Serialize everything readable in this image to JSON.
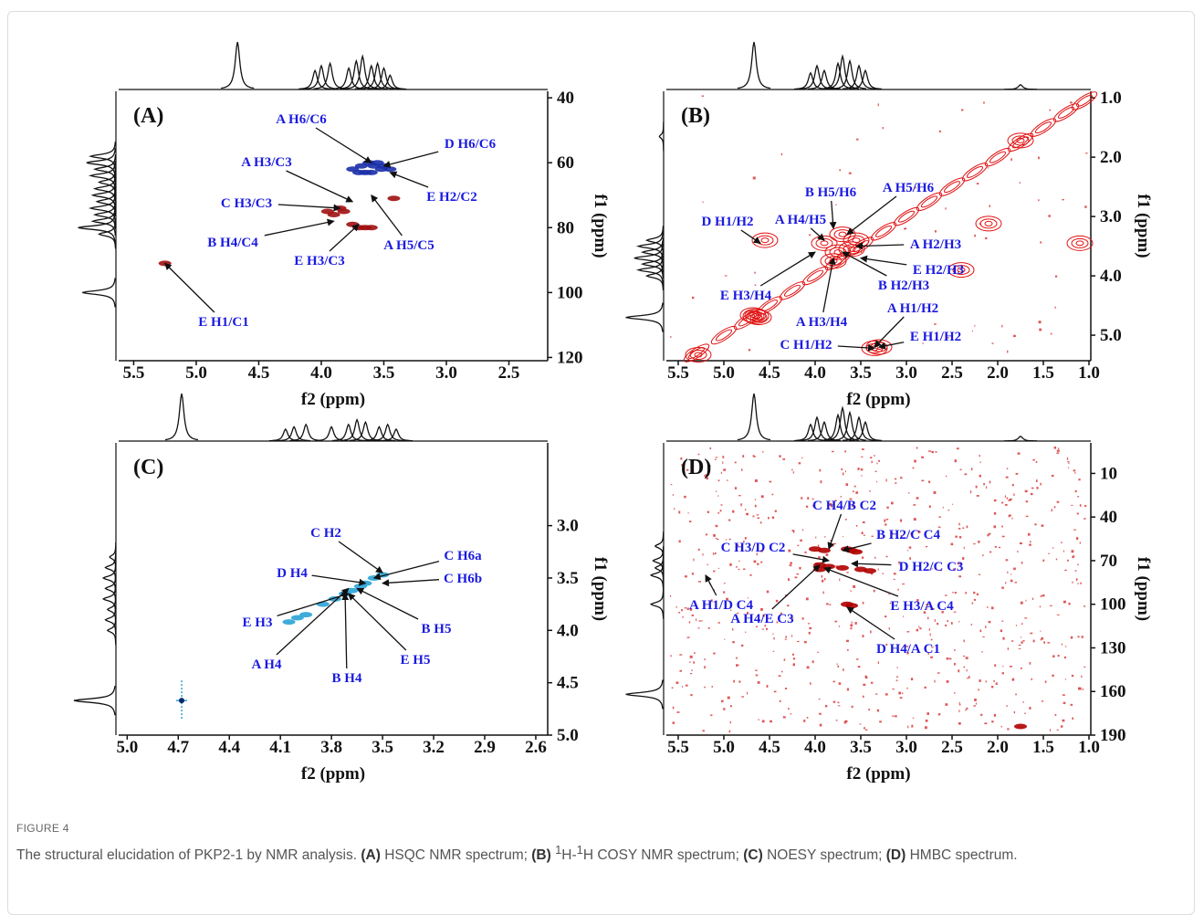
{
  "figure_label": "FIGURE 4",
  "caption": [
    "The structural elucidation of PKP2-1 by NMR analysis.",
    "(A)",
    "HSQC NMR spectrum;",
    "(B)",
    "1",
    "H-",
    "1",
    "H COSY NMR spectrum;",
    "(C)",
    "NOESY spectrum;",
    "(D)",
    "HMBC spectrum."
  ],
  "chart_data": [
    {
      "type": "nmr2d",
      "label": "(A)",
      "xlabel": "f2 (ppm)",
      "ylabel": "f1 (ppm)",
      "xlim": [
        5.62,
        2.19
      ],
      "ylim": [
        38,
        121
      ],
      "xticks": [
        5.5,
        {
          "value": 5,
          "label": "5.0"
        },
        4.5,
        {
          "value": 4,
          "label": "4.0"
        },
        3.5,
        {
          "value": 3,
          "label": "3.0"
        },
        2.5
      ],
      "yticks": [
        40,
        60,
        80,
        100,
        120
      ],
      "series": [
        {
          "color": "#1a2fa8",
          "style": "filled",
          "x": [
            3.75,
            3.68,
            3.62,
            3.58,
            3.55,
            3.5,
            3.45,
            3.65,
            3.6,
            3.52,
            3.7
          ],
          "y": [
            62,
            61,
            60,
            61,
            60,
            61,
            62,
            63,
            63,
            62,
            63
          ]
        },
        {
          "color": "#a01010",
          "style": "filled",
          "x": [
            3.95,
            3.9,
            3.85,
            3.82,
            3.7,
            3.65,
            3.6,
            3.75,
            5.25,
            3.42
          ],
          "y": [
            75,
            76,
            74,
            75,
            80,
            80,
            80,
            79,
            91,
            71
          ]
        }
      ],
      "annotations": [
        {
          "text": "A H6/C6",
          "x": 3.6,
          "y": 60
        },
        {
          "text": "D H6/C6",
          "x": 3.5,
          "y": 61
        },
        {
          "text": "A H3/C3",
          "x": 3.75,
          "y": 72
        },
        {
          "text": "E H2/C2",
          "x": 3.45,
          "y": 63
        },
        {
          "text": "C H3/C3",
          "x": 3.85,
          "y": 74
        },
        {
          "text": "A H5/C5",
          "x": 3.6,
          "y": 70
        },
        {
          "text": "B H4/C4",
          "x": 3.9,
          "y": 78
        },
        {
          "text": "E H3/C3",
          "x": 3.7,
          "y": 79
        },
        {
          "text": "E H1/C1",
          "x": 5.25,
          "y": 91
        }
      ],
      "top_projection": {
        "x": [
          4.67,
          4.05,
          4.0,
          3.93,
          3.78,
          3.72,
          3.67,
          3.6,
          3.55,
          3.5,
          3.45
        ],
        "values": [
          1.0,
          0.4,
          0.5,
          0.55,
          0.45,
          0.6,
          0.7,
          0.5,
          0.55,
          0.45,
          0.3
        ]
      },
      "left_projection": {
        "y": [
          58,
          60,
          62,
          64,
          66,
          68,
          70,
          72,
          74,
          76,
          78,
          80,
          82,
          100
        ],
        "values": [
          0.6,
          0.7,
          0.5,
          0.6,
          0.4,
          0.5,
          0.55,
          0.45,
          0.6,
          0.5,
          0.55,
          0.9,
          0.4,
          0.8
        ]
      }
    },
    {
      "type": "nmr2d",
      "label": "(B)",
      "xlabel": "f2 (ppm)",
      "ylabel": "f1 (ppm)",
      "xlim": [
        5.63,
        0.98
      ],
      "ylim": [
        0.89,
        5.43
      ],
      "xticks": [
        5.5,
        {
          "value": 5,
          "label": "5.0"
        },
        4.5,
        {
          "value": 4,
          "label": "4.0"
        },
        3.5,
        {
          "value": 3,
          "label": "3.0"
        },
        2.5,
        {
          "value": 2,
          "label": "2.0"
        },
        1.5,
        {
          "value": 1,
          "label": "1.0"
        }
      ],
      "yticks": [
        {
          "value": 1,
          "label": "1.0"
        },
        {
          "value": 2,
          "label": "2.0"
        },
        {
          "value": 3,
          "label": "3.0"
        },
        {
          "value": 4,
          "label": "4.0"
        },
        {
          "value": 5,
          "label": "5.0"
        }
      ],
      "series": [
        {
          "color": "#e01010",
          "style": "diagonal",
          "x": [
            5.3,
            5.0,
            4.75,
            4.5,
            4.25,
            4.0,
            3.75,
            3.5,
            3.25,
            3.0,
            2.75,
            2.5,
            2.25,
            2.0,
            1.75,
            1.5,
            1.25,
            1.05
          ],
          "y": [
            5.3,
            5.0,
            4.75,
            4.5,
            4.25,
            4.0,
            3.75,
            3.5,
            3.25,
            3.0,
            2.75,
            2.5,
            2.25,
            2.0,
            1.75,
            1.5,
            1.25,
            1.05
          ]
        },
        {
          "color": "#e01010",
          "style": "contour",
          "x": [
            4.65,
            4.62,
            4.68,
            3.9,
            3.75,
            3.6,
            3.8,
            3.55,
            3.7,
            4.55,
            3.35,
            3.3,
            5.28,
            1.75,
            2.1,
            1.1,
            2.4
          ],
          "y": [
            4.68,
            4.7,
            4.66,
            3.45,
            3.6,
            3.55,
            3.75,
            3.4,
            3.3,
            3.4,
            5.22,
            5.2,
            5.33,
            1.72,
            3.12,
            3.45,
            3.9
          ]
        }
      ],
      "annotations": [
        {
          "text": "D H1/H2",
          "x": 4.6,
          "y": 3.45
        },
        {
          "text": "B H5/H6",
          "x": 3.8,
          "y": 3.2
        },
        {
          "text": "A H5/H6",
          "x": 3.65,
          "y": 3.3
        },
        {
          "text": "A H4/H5",
          "x": 3.9,
          "y": 3.4
        },
        {
          "text": "A H2/H3",
          "x": 3.55,
          "y": 3.5
        },
        {
          "text": "E H2/H3",
          "x": 3.5,
          "y": 3.7
        },
        {
          "text": "B H2/H3",
          "x": 3.7,
          "y": 3.6
        },
        {
          "text": "E H3/H4",
          "x": 4.0,
          "y": 3.6
        },
        {
          "text": "A H3/H4",
          "x": 3.8,
          "y": 3.7
        },
        {
          "text": "A H1/H2",
          "x": 3.35,
          "y": 5.2
        },
        {
          "text": "C H1/H2",
          "x": 3.35,
          "y": 5.22
        },
        {
          "text": "E H1/H2",
          "x": 3.3,
          "y": 5.2
        }
      ],
      "top_projection": {
        "x": [
          4.67,
          4.05,
          3.98,
          3.9,
          3.75,
          3.7,
          3.62,
          3.52,
          3.45,
          1.75
        ],
        "values": [
          1.0,
          0.35,
          0.5,
          0.4,
          0.55,
          0.7,
          0.6,
          0.5,
          0.4,
          0.1
        ]
      },
      "left_projection": {
        "y": [
          1.65,
          3.4,
          3.5,
          3.6,
          3.7,
          3.8,
          3.9,
          4.0,
          4.7
        ],
        "values": [
          0.1,
          0.4,
          0.6,
          0.5,
          0.7,
          0.5,
          0.6,
          0.4,
          0.9
        ]
      }
    },
    {
      "type": "nmr2d",
      "label": "(C)",
      "xlabel": "f2 (ppm)",
      "ylabel": "f1 (ppm)",
      "xlim": [
        5.05,
        2.53
      ],
      "ylim": [
        2.21,
        5.0
      ],
      "xticks": [
        {
          "value": 5,
          "label": "5.0"
        },
        4.7,
        4.4,
        4.1,
        3.8,
        3.5,
        3.2,
        2.9,
        2.6
      ],
      "yticks": [
        {
          "value": 3,
          "label": "3.0"
        },
        3.5,
        {
          "value": 4,
          "label": "4.0"
        },
        4.5,
        {
          "value": 5,
          "label": "5.0"
        }
      ],
      "series": [
        {
          "color": "#29a3d6",
          "style": "filled",
          "x": [
            3.5,
            3.55,
            3.6,
            3.63,
            3.68,
            3.72,
            3.78,
            3.85,
            3.95,
            4.0,
            4.05
          ],
          "y": [
            3.47,
            3.5,
            3.55,
            3.58,
            3.62,
            3.65,
            3.7,
            3.75,
            3.85,
            3.88,
            3.92
          ]
        },
        {
          "color": "#0b2a6b",
          "style": "cross",
          "x": [
            4.68
          ],
          "y": [
            4.67
          ]
        }
      ],
      "annotations": [
        {
          "text": "C H2",
          "x": 3.5,
          "y": 3.45
        },
        {
          "text": "C H6a",
          "x": 3.55,
          "y": 3.5
        },
        {
          "text": "C H6b",
          "x": 3.5,
          "y": 3.55
        },
        {
          "text": "D H4",
          "x": 3.6,
          "y": 3.55
        },
        {
          "text": "E H3",
          "x": 3.7,
          "y": 3.65
        },
        {
          "text": "B H5",
          "x": 3.65,
          "y": 3.6
        },
        {
          "text": "E H5",
          "x": 3.7,
          "y": 3.65
        },
        {
          "text": "A H4",
          "x": 3.7,
          "y": 3.6
        },
        {
          "text": "B H4",
          "x": 3.72,
          "y": 3.65
        }
      ],
      "top_projection": {
        "x": [
          4.68,
          4.07,
          4.02,
          3.95,
          3.8,
          3.7,
          3.65,
          3.6,
          3.52,
          3.47,
          3.42
        ],
        "values": [
          1.0,
          0.25,
          0.3,
          0.35,
          0.3,
          0.35,
          0.45,
          0.4,
          0.3,
          0.35,
          0.25
        ]
      },
      "left_projection": {
        "y": [
          3.3,
          3.4,
          3.5,
          3.6,
          3.7,
          3.8,
          3.9,
          4.0,
          4.67
        ],
        "values": [
          0.15,
          0.25,
          0.3,
          0.25,
          0.3,
          0.2,
          0.25,
          0.2,
          1.0
        ]
      }
    },
    {
      "type": "nmr2d",
      "label": "(D)",
      "xlabel": "f2 (ppm)",
      "ylabel": "f1 (ppm)",
      "xlim": [
        5.63,
        0.98
      ],
      "ylim": [
        -11,
        190
      ],
      "xticks": [
        5.5,
        {
          "value": 5,
          "label": "5.0"
        },
        4.5,
        {
          "value": 4,
          "label": "4.0"
        },
        3.5,
        {
          "value": 3,
          "label": "3.0"
        },
        2.5,
        {
          "value": 2,
          "label": "2.0"
        },
        1.5,
        {
          "value": 1,
          "label": "1.0"
        }
      ],
      "yticks": [
        10,
        40,
        70,
        100,
        130,
        160,
        190
      ],
      "series": [
        {
          "color": "#b00000",
          "style": "filled",
          "x": [
            4.0,
            3.9,
            3.65,
            3.6,
            3.55,
            3.95,
            3.85,
            3.7,
            3.5,
            3.4,
            3.6,
            3.65,
            3.95,
            1.75
          ],
          "y": [
            62,
            63,
            62,
            63,
            64,
            73,
            74,
            75,
            76,
            77,
            101,
            100,
            76,
            184
          ]
        }
      ],
      "annotations": [
        {
          "text": "C H4/B C2",
          "x": 3.85,
          "y": 62
        },
        {
          "text": "B H2/C C4",
          "x": 3.7,
          "y": 63
        },
        {
          "text": "C H3/D C2",
          "x": 3.85,
          "y": 70
        },
        {
          "text": "D H2/C C3",
          "x": 3.6,
          "y": 72
        },
        {
          "text": "A H1/D C4",
          "x": 5.2,
          "y": 80
        },
        {
          "text": "E H3/A C4",
          "x": 3.9,
          "y": 75
        },
        {
          "text": "A H4/E C3",
          "x": 3.95,
          "y": 73
        },
        {
          "text": "D H4/A C1",
          "x": 3.65,
          "y": 102
        }
      ],
      "top_projection": {
        "x": [
          4.67,
          4.05,
          3.98,
          3.9,
          3.75,
          3.7,
          3.62,
          3.52,
          3.45,
          1.75
        ],
        "values": [
          1.0,
          0.35,
          0.5,
          0.4,
          0.55,
          0.7,
          0.6,
          0.5,
          0.4,
          0.1
        ]
      },
      "left_projection": {
        "y": [
          60,
          70,
          75,
          80,
          100,
          162
        ],
        "values": [
          0.2,
          0.25,
          0.2,
          0.3,
          0.3,
          0.9
        ]
      }
    }
  ]
}
